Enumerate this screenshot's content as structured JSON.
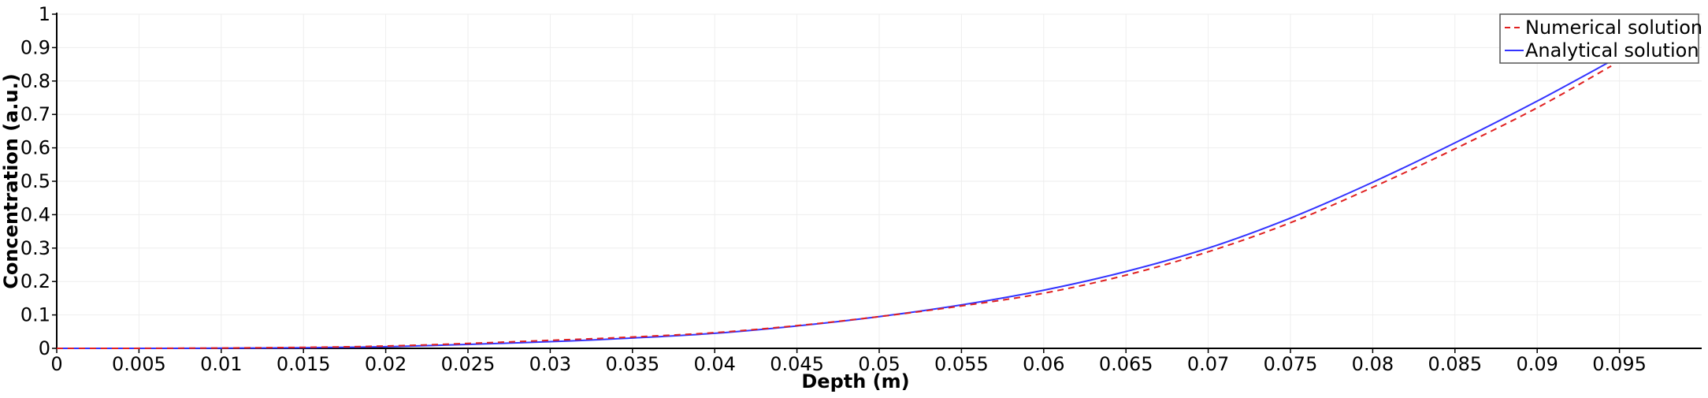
{
  "chart_data": {
    "type": "line",
    "xlabel": "Depth (m)",
    "ylabel": "Concentration (a.u.)",
    "xlim": [
      0,
      0.1
    ],
    "ylim": [
      0,
      1
    ],
    "grid": true,
    "legend_position": "top-right",
    "x_ticks": [
      "0",
      "0.005",
      "0.01",
      "0.015",
      "0.02",
      "0.025",
      "0.03",
      "0.035",
      "0.04",
      "0.045",
      "0.05",
      "0.055",
      "0.06",
      "0.065",
      "0.07",
      "0.075",
      "0.08",
      "0.085",
      "0.09",
      "0.095"
    ],
    "y_ticks": [
      "0",
      "0.1",
      "0.2",
      "0.3",
      "0.4",
      "0.5",
      "0.6",
      "0.7",
      "0.8",
      "0.9",
      "1"
    ],
    "series": [
      {
        "name": "Numerical solution",
        "color": "#e02020",
        "style": "dashed",
        "x": [
          0,
          0.01,
          0.02,
          0.03,
          0.035,
          0.04,
          0.045,
          0.05,
          0.055,
          0.06,
          0.065,
          0.07,
          0.075,
          0.08,
          0.085,
          0.09,
          0.0945
        ],
        "y": [
          0,
          0.001,
          0.007,
          0.024,
          0.034,
          0.047,
          0.068,
          0.095,
          0.127,
          0.165,
          0.219,
          0.289,
          0.376,
          0.482,
          0.597,
          0.72,
          0.845
        ]
      },
      {
        "name": "Analytical solution",
        "color": "#3333ff",
        "style": "solid",
        "x": [
          0,
          0.01,
          0.02,
          0.03,
          0.035,
          0.04,
          0.045,
          0.05,
          0.055,
          0.06,
          0.065,
          0.07,
          0.075,
          0.08,
          0.085,
          0.09,
          0.0945
        ],
        "y": [
          0,
          0.0005,
          0.005,
          0.02,
          0.031,
          0.045,
          0.067,
          0.095,
          0.13,
          0.174,
          0.23,
          0.3,
          0.39,
          0.497,
          0.615,
          0.74,
          0.86
        ]
      }
    ]
  }
}
